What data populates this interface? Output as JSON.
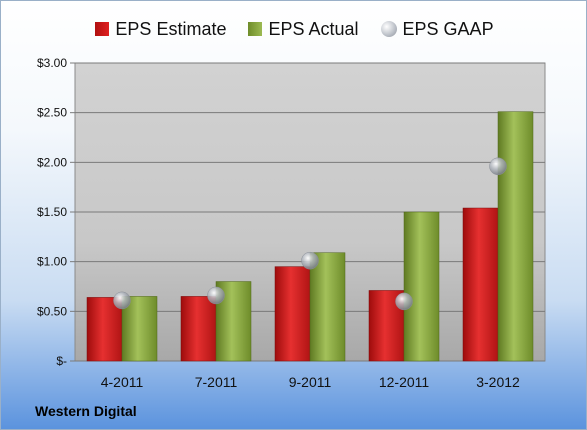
{
  "chart_data": {
    "type": "bar",
    "categories": [
      "4-2011",
      "7-2011",
      "9-2011",
      "12-2011",
      "3-2012"
    ],
    "series": [
      {
        "name": "EPS Estimate",
        "kind": "bar",
        "color": "#d42020",
        "values": [
          0.64,
          0.65,
          0.95,
          0.71,
          1.54
        ]
      },
      {
        "name": "EPS Actual",
        "kind": "bar",
        "color": "#8aa845",
        "values": [
          0.65,
          0.8,
          1.09,
          1.5,
          2.51
        ]
      },
      {
        "name": "EPS GAAP",
        "kind": "marker",
        "color": "#b9bec6",
        "values": [
          0.61,
          0.66,
          1.01,
          0.6,
          1.96
        ]
      }
    ],
    "ylim": [
      0,
      3.0
    ],
    "yticks": [
      0,
      0.5,
      1.0,
      1.5,
      2.0,
      2.5,
      3.0
    ],
    "ytick_labels": [
      "$-",
      "$0.50",
      "$1.00",
      "$1.50",
      "$2.00",
      "$2.50",
      "$3.00"
    ],
    "grid": true,
    "legend_position": "top"
  },
  "company_label": "Western Digital"
}
